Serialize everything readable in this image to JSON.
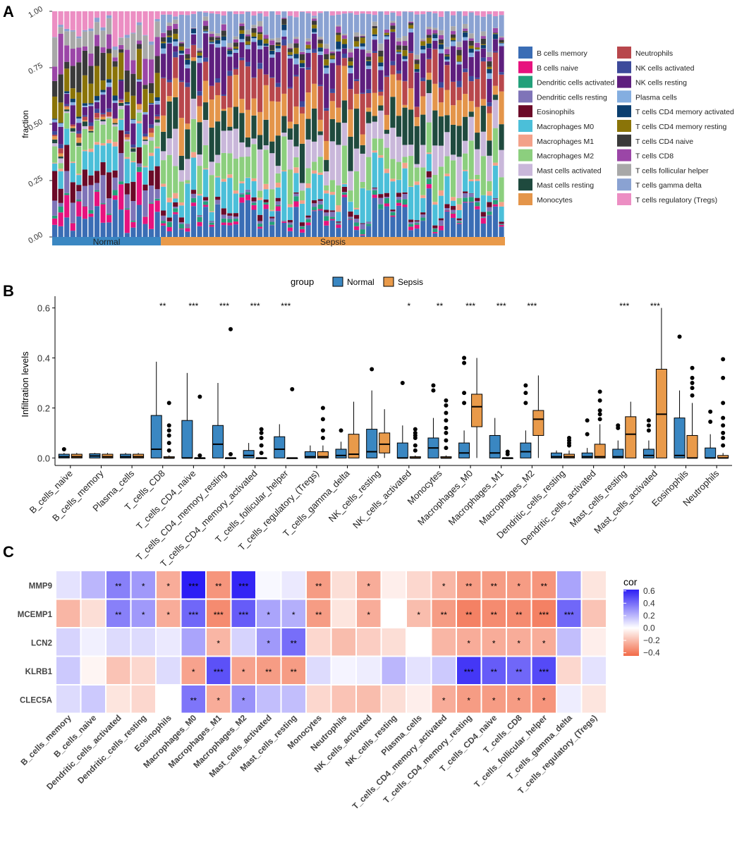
{
  "panels": {
    "a": "A",
    "b": "B",
    "c": "C"
  },
  "chart_data": [
    {
      "type": "bar",
      "subtype": "stacked-100",
      "panel": "A",
      "ylabel": "fraction",
      "yticks": [
        "0.00",
        "0.25",
        "0.50",
        "0.75",
        "1.00"
      ],
      "ylim": [
        0,
        1
      ],
      "groups": [
        {
          "name": "Normal",
          "count": 18,
          "color": "#3a87c2"
        },
        {
          "name": "Sepsis",
          "count": 57,
          "color": "#e99a4a"
        }
      ],
      "legend": [
        {
          "name": "B cells memory",
          "color": "#3a6db5"
        },
        {
          "name": "B cells naive",
          "color": "#e7127e"
        },
        {
          "name": "Dendritic cells activated",
          "color": "#22a07a"
        },
        {
          "name": "Dendritic cells resting",
          "color": "#7f74b8"
        },
        {
          "name": "Eosinophils",
          "color": "#6b0a28"
        },
        {
          "name": "Macrophages M0",
          "color": "#4bbfd9"
        },
        {
          "name": "Macrophages M1",
          "color": "#f3a189"
        },
        {
          "name": "Macrophages M2",
          "color": "#8ccf7e"
        },
        {
          "name": "Mast cells activated",
          "color": "#c9b7da"
        },
        {
          "name": "Mast cells resting",
          "color": "#1f4a3e"
        },
        {
          "name": "Monocytes",
          "color": "#e4954a"
        },
        {
          "name": "Neutrophils",
          "color": "#b8474c"
        },
        {
          "name": "NK cells activated",
          "color": "#3d4a9b"
        },
        {
          "name": "NK cells resting",
          "color": "#5e1f7e"
        },
        {
          "name": "Plasma cells",
          "color": "#84aee0"
        },
        {
          "name": "T cells CD4 memory activated",
          "color": "#0b3e6e"
        },
        {
          "name": "T cells CD4 memory resting",
          "color": "#8a7408"
        },
        {
          "name": "T cells CD4 naive",
          "color": "#3a3a3a"
        },
        {
          "name": "T cells CD8",
          "color": "#9b46a7"
        },
        {
          "name": "T cells follicular helper",
          "color": "#a8a8a8"
        },
        {
          "name": "T cells gamma delta",
          "color": "#8aa2d2"
        },
        {
          "name": "T cells regulatory (Tregs)",
          "color": "#ec8ec3"
        }
      ]
    },
    {
      "type": "box",
      "panel": "B",
      "legend_title": "group",
      "legend": [
        {
          "name": "Normal",
          "color": "#3a87c2"
        },
        {
          "name": "Sepsis",
          "color": "#e99a4a"
        }
      ],
      "ylabel": "Infiltration levels",
      "yticks": [
        "0.0",
        "0.2",
        "0.4",
        "0.6"
      ],
      "ylim": [
        0,
        0.6
      ],
      "categories": [
        "B_cells_naive",
        "B_cells_memory",
        "Plasma_cells",
        "T_cells_CD8",
        "T_cells_CD4_naive",
        "T_cells_CD4_memory_resting",
        "T_cells_CD4_memory_activated",
        "T_cells_follicular_helper",
        "T_cells_regulatory_(Tregs)",
        "T_cells_gamma_delta",
        "NK_cells_resting",
        "NK_cells_activated",
        "Monocytes",
        "Macrophages_M0",
        "Macrophages_M1",
        "Macrophages_M2",
        "Dendritic_cells_resting",
        "Dendritic_cells_activated",
        "Mast_cells_resting",
        "Mast_cells_activated",
        "Eosinophils",
        "Neutrophils"
      ],
      "significance": [
        "",
        "",
        "",
        "**",
        "***",
        "***",
        "***",
        "***",
        "",
        "",
        "",
        "*",
        "**",
        "***",
        "***",
        "***",
        "",
        "",
        "***",
        "***",
        "",
        ""
      ],
      "normal": [
        {
          "q1": 0.0,
          "med": 0.005,
          "q3": 0.015,
          "lo": 0.0,
          "hi": 0.02,
          "out": [
            0.035
          ]
        },
        {
          "q1": 0.0,
          "med": 0.008,
          "q3": 0.017,
          "lo": 0.0,
          "hi": 0.02,
          "out": []
        },
        {
          "q1": 0.0,
          "med": 0.005,
          "q3": 0.015,
          "lo": 0.0,
          "hi": 0.02,
          "out": []
        },
        {
          "q1": 0.0,
          "med": 0.035,
          "q3": 0.17,
          "lo": 0.0,
          "hi": 0.385,
          "out": []
        },
        {
          "q1": 0.0,
          "med": 0.0,
          "q3": 0.15,
          "lo": 0.0,
          "hi": 0.34,
          "out": []
        },
        {
          "q1": 0.0,
          "med": 0.055,
          "q3": 0.13,
          "lo": 0.0,
          "hi": 0.3,
          "out": []
        },
        {
          "q1": 0.0,
          "med": 0.01,
          "q3": 0.03,
          "lo": 0.0,
          "hi": 0.06,
          "out": []
        },
        {
          "q1": 0.0,
          "med": 0.035,
          "q3": 0.085,
          "lo": 0.0,
          "hi": 0.135,
          "out": []
        },
        {
          "q1": 0.0,
          "med": 0.005,
          "q3": 0.025,
          "lo": 0.0,
          "hi": 0.05,
          "out": []
        },
        {
          "q1": 0.0,
          "med": 0.01,
          "q3": 0.035,
          "lo": 0.0,
          "hi": 0.065,
          "out": [
            0.11
          ]
        },
        {
          "q1": 0.0,
          "med": 0.025,
          "q3": 0.115,
          "lo": 0.0,
          "hi": 0.27,
          "out": [
            0.355
          ]
        },
        {
          "q1": 0.0,
          "med": 0.0,
          "q3": 0.06,
          "lo": 0.0,
          "hi": 0.13,
          "out": [
            0.3
          ]
        },
        {
          "q1": 0.0,
          "med": 0.04,
          "q3": 0.08,
          "lo": 0.0,
          "hi": 0.16,
          "out": [
            0.27,
            0.29
          ]
        },
        {
          "q1": 0.0,
          "med": 0.02,
          "q3": 0.06,
          "lo": 0.0,
          "hi": 0.11,
          "out": [
            0.22,
            0.26,
            0.38,
            0.4
          ]
        },
        {
          "q1": 0.0,
          "med": 0.02,
          "q3": 0.09,
          "lo": 0.0,
          "hi": 0.16,
          "out": []
        },
        {
          "q1": 0.0,
          "med": 0.025,
          "q3": 0.06,
          "lo": 0.0,
          "hi": 0.11,
          "out": [
            0.22,
            0.26,
            0.29
          ]
        },
        {
          "q1": 0.0,
          "med": 0.005,
          "q3": 0.02,
          "lo": 0.0,
          "hi": 0.03,
          "out": []
        },
        {
          "q1": 0.0,
          "med": 0.005,
          "q3": 0.02,
          "lo": 0.0,
          "hi": 0.04,
          "out": [
            0.095,
            0.15
          ]
        },
        {
          "q1": 0.0,
          "med": 0.005,
          "q3": 0.035,
          "lo": 0.0,
          "hi": 0.07,
          "out": [
            0.12,
            0.13
          ]
        },
        {
          "q1": 0.0,
          "med": 0.01,
          "q3": 0.035,
          "lo": 0.0,
          "hi": 0.07,
          "out": [
            0.11,
            0.13,
            0.15
          ]
        },
        {
          "q1": 0.0,
          "med": 0.01,
          "q3": 0.16,
          "lo": 0.0,
          "hi": 0.27,
          "out": [
            0.485
          ]
        },
        {
          "q1": 0.0,
          "med": 0.0,
          "q3": 0.04,
          "lo": 0.0,
          "hi": 0.095,
          "out": [
            0.145,
            0.185
          ]
        }
      ],
      "sepsis": [
        {
          "q1": 0.0,
          "med": 0.005,
          "q3": 0.015,
          "lo": 0.0,
          "hi": 0.02,
          "out": []
        },
        {
          "q1": 0.0,
          "med": 0.005,
          "q3": 0.015,
          "lo": 0.0,
          "hi": 0.02,
          "out": []
        },
        {
          "q1": 0.0,
          "med": 0.005,
          "q3": 0.015,
          "lo": 0.0,
          "hi": 0.02,
          "out": []
        },
        {
          "q1": 0.0,
          "med": 0.0,
          "q3": 0.005,
          "lo": 0.0,
          "hi": 0.01,
          "out": [
            0.03,
            0.06,
            0.09,
            0.11,
            0.13,
            0.22
          ]
        },
        {
          "q1": 0.0,
          "med": 0.0,
          "q3": 0.0,
          "lo": 0.0,
          "hi": 0.0,
          "out": [
            0.01,
            0.245
          ]
        },
        {
          "q1": 0.0,
          "med": 0.0,
          "q3": 0.0,
          "lo": 0.0,
          "hi": 0.0,
          "out": [
            0.015,
            0.515
          ]
        },
        {
          "q1": 0.0,
          "med": 0.0,
          "q3": 0.0,
          "lo": 0.0,
          "hi": 0.0,
          "out": [
            0.02,
            0.05,
            0.08,
            0.1,
            0.115
          ]
        },
        {
          "q1": 0.0,
          "med": 0.0,
          "q3": 0.0,
          "lo": 0.0,
          "hi": 0.0,
          "out": [
            0.275
          ]
        },
        {
          "q1": 0.0,
          "med": 0.005,
          "q3": 0.025,
          "lo": 0.0,
          "hi": 0.05,
          "out": [
            0.08,
            0.11,
            0.155,
            0.2
          ]
        },
        {
          "q1": 0.0,
          "med": 0.015,
          "q3": 0.095,
          "lo": 0.0,
          "hi": 0.225,
          "out": []
        },
        {
          "q1": 0.02,
          "med": 0.055,
          "q3": 0.1,
          "lo": 0.0,
          "hi": 0.195,
          "out": []
        },
        {
          "q1": 0.0,
          "med": 0.0,
          "q3": 0.005,
          "lo": 0.0,
          "hi": 0.01,
          "out": [
            0.03,
            0.05,
            0.08,
            0.09,
            0.1,
            0.115
          ]
        },
        {
          "q1": 0.0,
          "med": 0.0,
          "q3": 0.005,
          "lo": 0.0,
          "hi": 0.01,
          "out": [
            0.04,
            0.07,
            0.1,
            0.12,
            0.15,
            0.18,
            0.21,
            0.23
          ]
        },
        {
          "q1": 0.125,
          "med": 0.205,
          "q3": 0.255,
          "lo": 0.0,
          "hi": 0.4,
          "out": []
        },
        {
          "q1": 0.0,
          "med": 0.0,
          "q3": 0.0,
          "lo": 0.0,
          "hi": 0.0,
          "out": [
            0.015,
            0.025
          ]
        },
        {
          "q1": 0.09,
          "med": 0.155,
          "q3": 0.19,
          "lo": 0.0,
          "hi": 0.33,
          "out": []
        },
        {
          "q1": 0.0,
          "med": 0.005,
          "q3": 0.015,
          "lo": 0.0,
          "hi": 0.03,
          "out": [
            0.05,
            0.06,
            0.07,
            0.08
          ]
        },
        {
          "q1": 0.0,
          "med": 0.005,
          "q3": 0.055,
          "lo": 0.0,
          "hi": 0.135,
          "out": [
            0.155,
            0.175,
            0.19,
            0.23,
            0.265
          ]
        },
        {
          "q1": 0.0,
          "med": 0.095,
          "q3": 0.165,
          "lo": 0.0,
          "hi": 0.225,
          "out": []
        },
        {
          "q1": 0.0,
          "med": 0.175,
          "q3": 0.355,
          "lo": 0.0,
          "hi": 0.6,
          "out": []
        },
        {
          "q1": 0.0,
          "med": 0.0,
          "q3": 0.09,
          "lo": 0.0,
          "hi": 0.22,
          "out": [
            0.25,
            0.28,
            0.3,
            0.32,
            0.36
          ]
        },
        {
          "q1": 0.0,
          "med": 0.0,
          "q3": 0.01,
          "lo": 0.0,
          "hi": 0.02,
          "out": [
            0.05,
            0.08,
            0.1,
            0.13,
            0.16,
            0.22,
            0.32,
            0.395
          ]
        }
      ]
    },
    {
      "type": "heatmap",
      "panel": "C",
      "legend_title": "cor",
      "legend_ticks": [
        "0.6",
        "0.4",
        "0.2",
        "0.0",
        "−0.2",
        "−0.4"
      ],
      "legend_tick_values": [
        0.6,
        0.4,
        0.2,
        0.0,
        -0.2,
        -0.4
      ],
      "range": [
        -0.45,
        0.62
      ],
      "rows": [
        "MMP9",
        "MCEMP1",
        "LCN2",
        "KLRB1",
        "CLEC5A"
      ],
      "cols": [
        "B_cells_memory",
        "B_cells_naive",
        "Dendritic_cells_activated",
        "Dendritic_cells_resting",
        "Eosinophils",
        "Macrophages_M0",
        "Macrophages_M1",
        "Macrophages_M2",
        "Mast_cells_activated",
        "Mast_cells_resting",
        "Monocytes",
        "Neutrophils",
        "NK_cells_activated",
        "NK_cells_resting",
        "Plasma_cells",
        "T_cells_CD4_memory_activated",
        "T_cells_CD4_memory_resting",
        "T_cells_CD4_naive",
        "T_cells_CD8",
        "T_cells_follicular_helper",
        "T_cells_gamma_delta",
        "T_cells_regulatory_(Tregs)"
      ],
      "values": [
        [
          0.08,
          0.2,
          0.35,
          0.28,
          -0.25,
          0.62,
          -0.32,
          0.6,
          0.02,
          0.06,
          -0.3,
          -0.1,
          -0.25,
          -0.05,
          -0.12,
          -0.22,
          -0.3,
          -0.3,
          -0.3,
          -0.32,
          0.25,
          -0.08
        ],
        [
          -0.22,
          -0.1,
          0.35,
          0.28,
          -0.25,
          0.42,
          -0.35,
          0.45,
          0.25,
          0.22,
          -0.3,
          -0.08,
          -0.25,
          0.0,
          -0.2,
          -0.3,
          -0.38,
          -0.35,
          -0.35,
          -0.38,
          0.42,
          -0.18
        ],
        [
          0.12,
          0.04,
          0.1,
          0.1,
          0.06,
          0.25,
          -0.22,
          0.12,
          0.28,
          0.4,
          -0.12,
          -0.2,
          -0.15,
          -0.1,
          0.0,
          -0.22,
          -0.25,
          -0.25,
          -0.25,
          -0.25,
          0.18,
          -0.05
        ],
        [
          0.15,
          -0.03,
          -0.18,
          -0.12,
          0.1,
          -0.28,
          0.48,
          -0.28,
          -0.3,
          -0.3,
          0.1,
          0.03,
          0.05,
          0.2,
          0.08,
          0.15,
          0.55,
          0.45,
          0.42,
          0.5,
          -0.12,
          0.08
        ],
        [
          0.1,
          0.15,
          -0.08,
          -0.12,
          0.0,
          0.38,
          -0.25,
          0.3,
          0.18,
          0.18,
          -0.12,
          -0.18,
          -0.2,
          -0.1,
          -0.05,
          -0.25,
          -0.3,
          -0.3,
          -0.3,
          -0.32,
          0.05,
          -0.08
        ]
      ],
      "stars": [
        [
          "",
          "",
          "**",
          "*",
          "*",
          "***",
          "**",
          "***",
          "",
          "",
          "**",
          "",
          "*",
          "",
          "",
          "*",
          "**",
          "**",
          "*",
          "**",
          "",
          ""
        ],
        [
          "",
          "",
          "**",
          "*",
          "*",
          "***",
          "***",
          "***",
          "*",
          "*",
          "**",
          "",
          "*",
          "",
          "*",
          "**",
          "**",
          "**",
          "**",
          "***",
          "***",
          ""
        ],
        [
          "",
          "",
          "",
          "",
          "",
          "",
          "*",
          "",
          "*",
          "**",
          "",
          "",
          "",
          "",
          "",
          "",
          "*",
          "*",
          "*",
          "*",
          "",
          ""
        ],
        [
          "",
          "",
          "",
          "",
          "",
          "*",
          "***",
          "*",
          "**",
          "**",
          "",
          "",
          "",
          "",
          "",
          "",
          "***",
          "**",
          "**",
          "***",
          "",
          ""
        ],
        [
          "",
          "",
          "",
          "",
          "",
          "**",
          "*",
          "*",
          "",
          "",
          "",
          "",
          "",
          "",
          "",
          "*",
          "*",
          "*",
          "*",
          "*",
          "",
          ""
        ]
      ]
    }
  ]
}
